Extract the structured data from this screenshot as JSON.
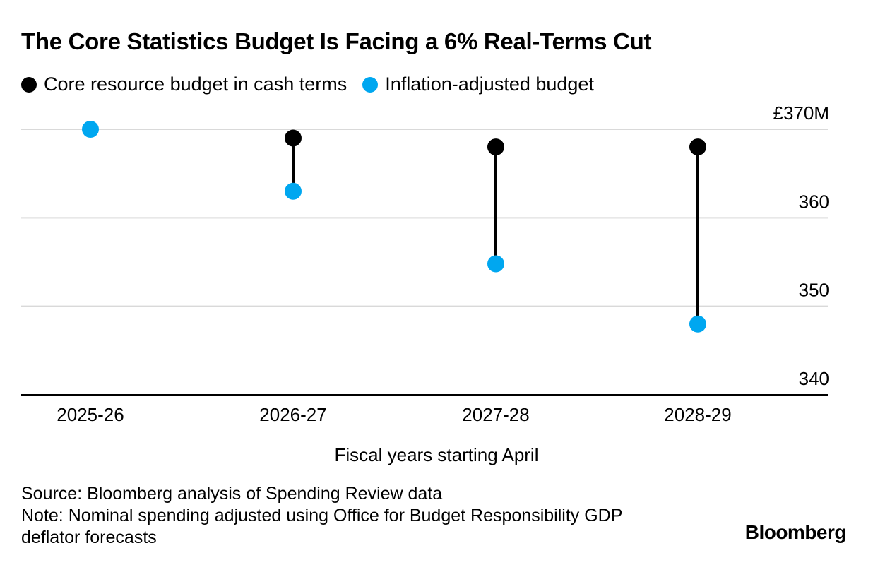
{
  "title": "The Core Statistics Budget Is Facing a 6% Real-Terms Cut",
  "legend": [
    {
      "label": "Core resource budget in cash terms",
      "color": "#000000"
    },
    {
      "label": "Inflation-adjusted budget",
      "color": "#00a7f0"
    }
  ],
  "footer": {
    "source": "Source: Bloomberg analysis of Spending Review data",
    "note_line1": "Note: Nominal spending adjusted using Office for Budget Responsibility GDP",
    "note_line2": "deflator forecasts"
  },
  "brand": "Bloomberg",
  "colors": {
    "cash": "#000000",
    "inflation": "#00a7f0",
    "grid": "#d9d9d9",
    "axis": "#000000"
  },
  "chart_data": {
    "type": "scatter",
    "subtype": "dumbbell",
    "categories": [
      "2025-26",
      "2026-27",
      "2027-28",
      "2028-29"
    ],
    "series": [
      {
        "name": "Core resource budget in cash terms",
        "values": [
          370,
          369,
          368,
          368
        ]
      },
      {
        "name": "Inflation-adjusted budget",
        "values": [
          370,
          363,
          354.8,
          348
        ]
      }
    ],
    "xlabel": "Fiscal years starting April",
    "ylabel": "",
    "y_ticks": [
      {
        "value": 370,
        "label": "£370M"
      },
      {
        "value": 360,
        "label": "360"
      },
      {
        "value": 350,
        "label": "350"
      },
      {
        "value": 340,
        "label": "340"
      }
    ],
    "ylim": [
      340,
      370
    ],
    "y_axis_position": "right",
    "grid": true,
    "legend_position": "top-left"
  }
}
